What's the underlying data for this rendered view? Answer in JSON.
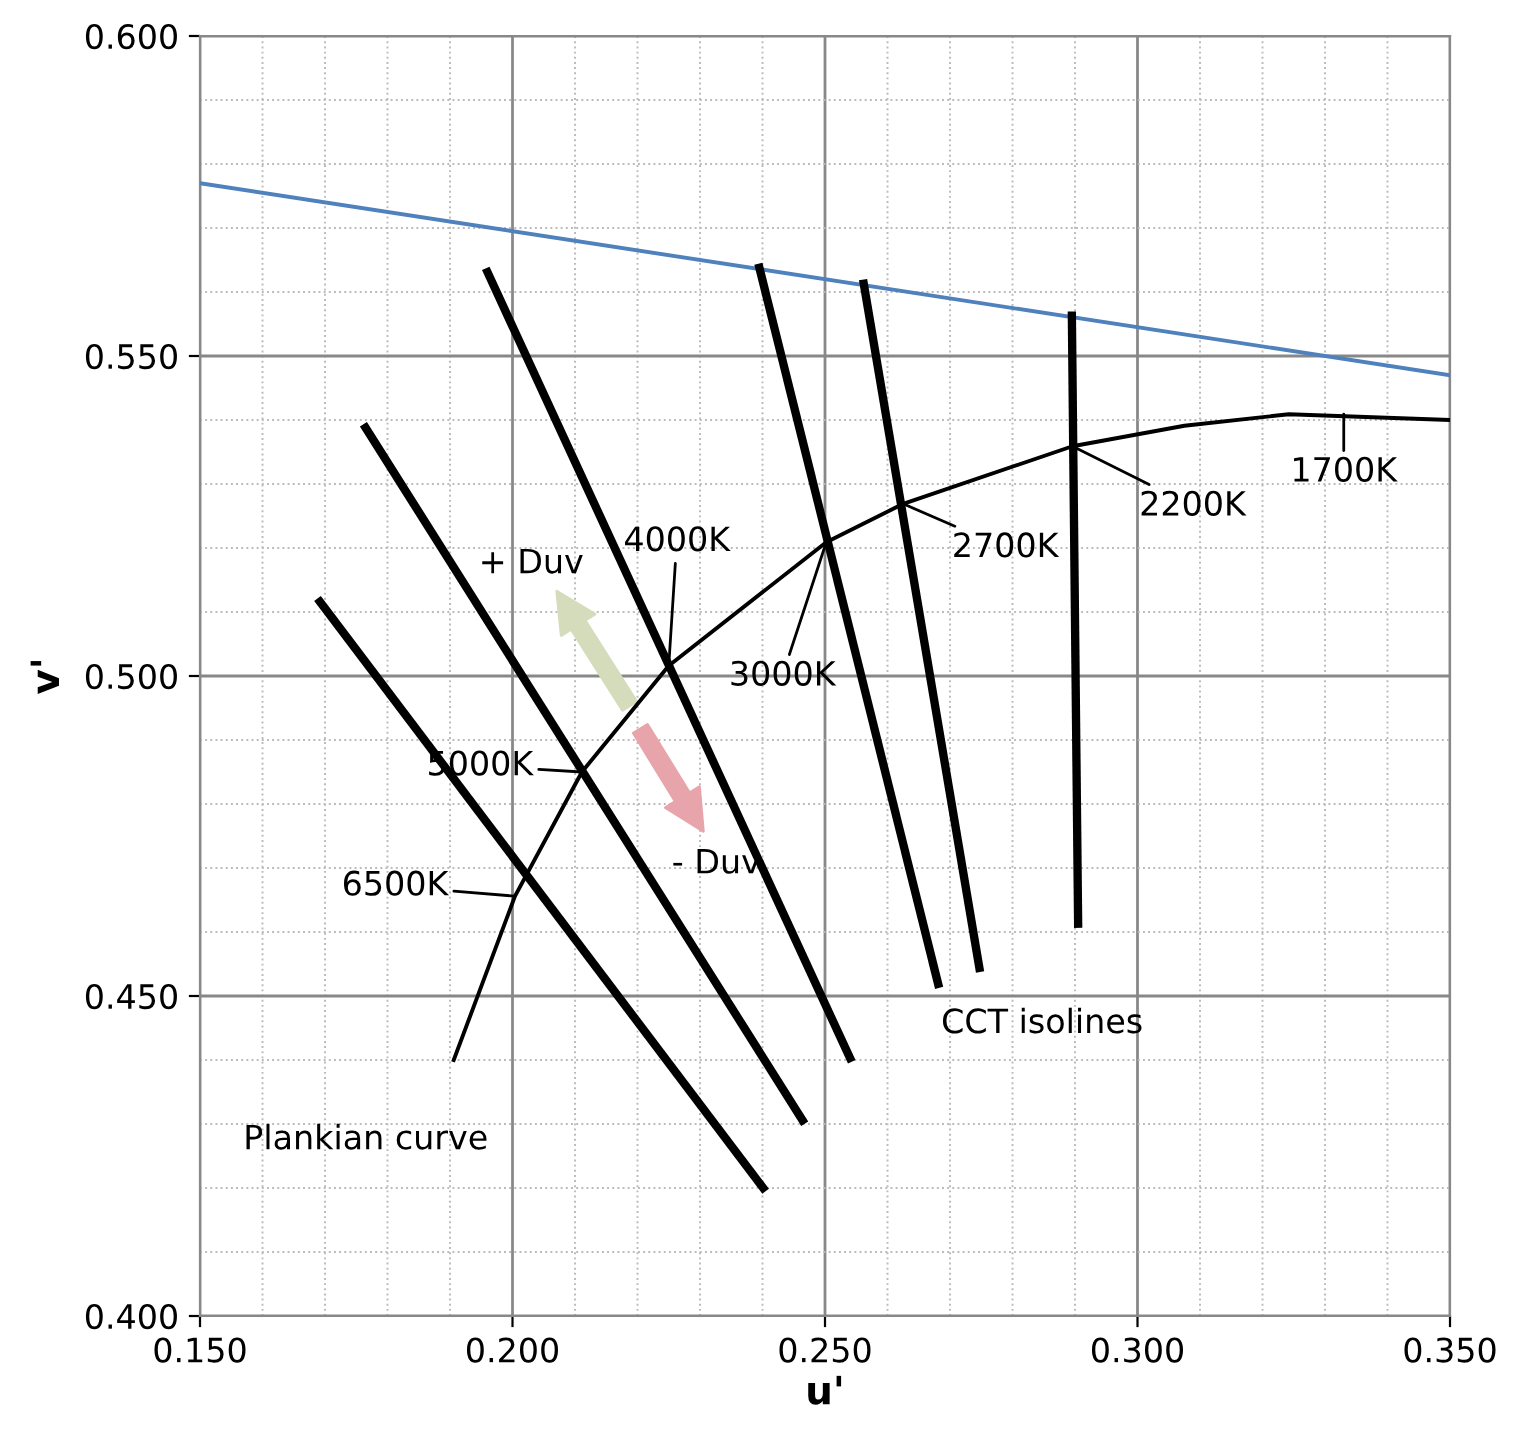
{
  "chart_data": {
    "type": "line",
    "xlabel": "u'",
    "ylabel": "v'",
    "xlim": [
      0.15,
      0.35
    ],
    "ylim": [
      0.4,
      0.6
    ],
    "xticks": [
      {
        "value": 0.15,
        "label": "0.150"
      },
      {
        "value": 0.2,
        "label": "0.200"
      },
      {
        "value": 0.25,
        "label": "0.250"
      },
      {
        "value": 0.3,
        "label": "0.300"
      },
      {
        "value": 0.35,
        "label": "0.350"
      }
    ],
    "yticks": [
      {
        "value": 0.4,
        "label": "0.400"
      },
      {
        "value": 0.45,
        "label": "0.450"
      },
      {
        "value": 0.5,
        "label": "0.500"
      },
      {
        "value": 0.55,
        "label": "0.550"
      },
      {
        "value": 0.6,
        "label": "0.600"
      }
    ],
    "grid": true,
    "marker": "none",
    "line_style": "solid",
    "series": [
      {
        "color": "#4f81bd",
        "x": [
          0.15,
          0.35
        ],
        "values": [
          0.577,
          0.547
        ]
      },
      {
        "color": "#000000",
        "x": [
          0.1906,
          0.2004,
          0.2111,
          0.225,
          0.2502,
          0.2625,
          0.2896,
          0.3075,
          0.3242,
          0.35
        ],
        "values": [
          0.44,
          0.4656,
          0.485,
          0.5016,
          0.5209,
          0.5269,
          0.5359,
          0.5391,
          0.5409,
          0.54
        ]
      },
      {
        "color": "#000000",
        "x": [
          0.1692,
          0.2401
        ],
        "values": [
          0.5116,
          0.42
        ]
      },
      {
        "color": "#000000",
        "x": [
          0.1765,
          0.2464
        ],
        "values": [
          0.5388,
          0.4306
        ]
      },
      {
        "color": "#000000",
        "x": [
          0.196,
          0.254
        ],
        "values": [
          0.5631,
          0.4403
        ]
      },
      {
        "color": "#000000",
        "x": [
          0.2395,
          0.2681
        ],
        "values": [
          0.5638,
          0.4519
        ]
      },
      {
        "color": "#000000",
        "x": [
          0.2562,
          0.2747
        ],
        "values": [
          0.5613,
          0.4544
        ]
      },
      {
        "color": "#000000",
        "x": [
          0.2895,
          0.2905
        ],
        "values": [
          0.5563,
          0.4613
        ]
      }
    ],
    "annotations": [
      {
        "text": "6500K",
        "x": 0.2004,
        "y": 0.4656
      },
      {
        "text": "5000K",
        "x": 0.2111,
        "y": 0.485
      },
      {
        "text": "4000K",
        "x": 0.225,
        "y": 0.5016
      },
      {
        "text": "3000K",
        "x": 0.2502,
        "y": 0.5209
      },
      {
        "text": "2700K",
        "x": 0.2625,
        "y": 0.5269
      },
      {
        "text": "2200K",
        "x": 0.2896,
        "y": 0.5359
      },
      {
        "text": "1700K",
        "x": 0.333,
        "y": 0.5409
      },
      {
        "text": "Plankian curve",
        "x": 0.1906,
        "y": 0.44
      },
      {
        "text": "CCT isolines",
        "x": 0.2681,
        "y": 0.4519
      },
      "+ Duv",
      "- Duv"
    ]
  }
}
